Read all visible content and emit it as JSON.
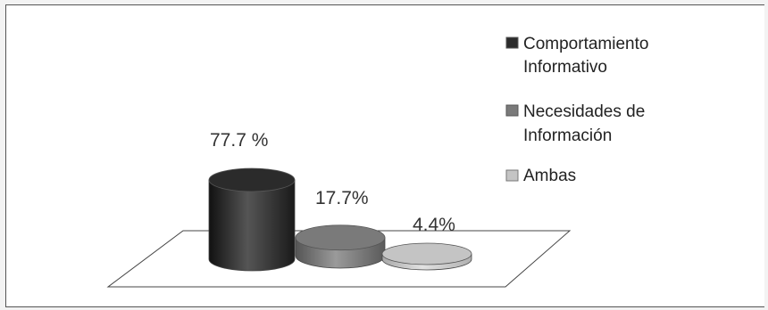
{
  "chart_data": {
    "type": "bar",
    "categories": [
      "Comportamiento Informativo",
      "Necesidades de Información",
      "Ambas"
    ],
    "values": [
      77.7,
      17.7,
      4.4
    ],
    "data_labels": [
      "77.7 %",
      "17.7%",
      "4.4%"
    ],
    "legend": {
      "placement": "right",
      "entries": [
        {
          "lines": [
            "Comportamiento",
            "Informativo"
          ],
          "color": "#2b2b2b"
        },
        {
          "lines": [
            "Necesidades de",
            "Información"
          ],
          "color": "#7a7a7a"
        },
        {
          "lines": [
            "Ambas"
          ],
          "color": "#c4c4c4"
        }
      ]
    },
    "colors": [
      "#2b2b2b",
      "#7a7a7a",
      "#c4c4c4"
    ],
    "grid": false,
    "style": "3d-cylinder"
  }
}
